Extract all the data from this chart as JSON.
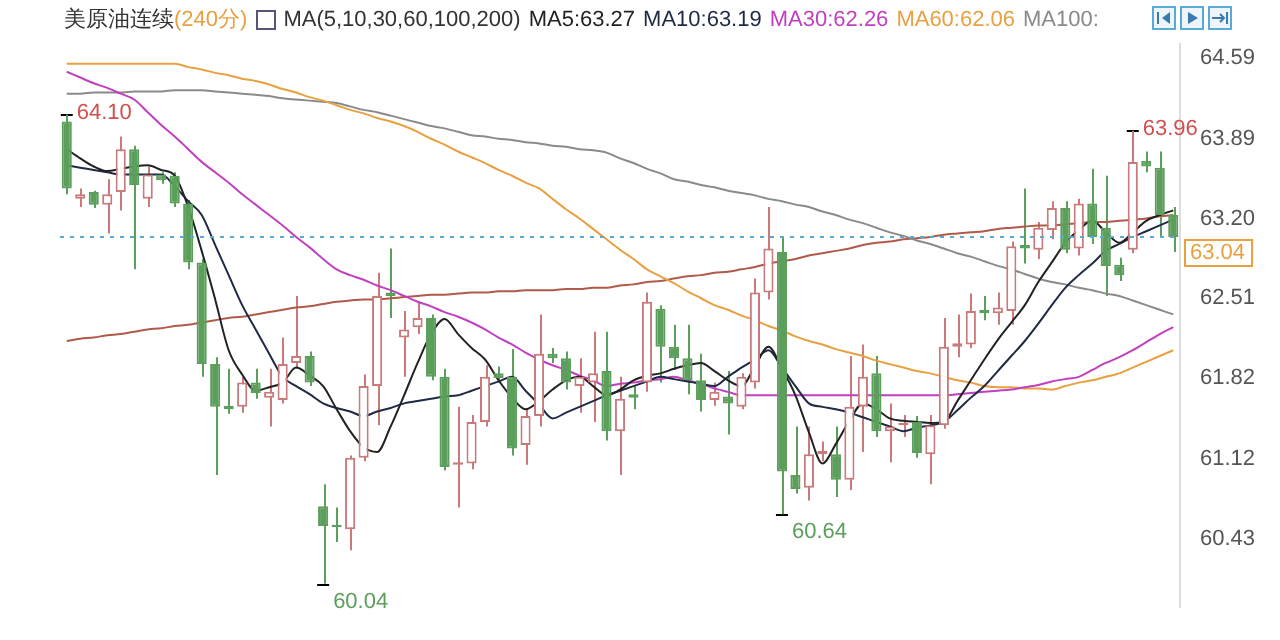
{
  "chart_data": {
    "type": "candlestick",
    "title": "美原油连续",
    "subtitle": "(240分)",
    "legend_title": "MA(5,10,30,60,100,200)",
    "legend": "top",
    "grid": false,
    "categories": [
      null,
      null,
      null,
      null,
      null,
      null,
      null,
      null,
      null,
      null,
      null,
      null,
      null,
      null,
      null,
      null,
      null,
      null,
      null,
      null,
      null,
      null,
      null,
      null,
      null,
      null,
      null,
      null,
      null,
      null,
      null,
      null,
      null,
      null,
      null,
      null,
      null,
      null,
      null,
      null,
      null,
      null,
      null,
      null,
      null,
      null,
      null,
      null,
      null,
      null,
      null,
      null,
      null,
      null,
      null,
      null,
      null,
      null,
      null,
      null,
      null,
      null,
      null,
      null,
      null,
      null,
      null,
      null,
      null,
      null,
      null,
      null,
      null,
      null,
      null,
      null,
      null,
      null,
      null,
      null,
      null,
      null,
      null
    ],
    "ohlc": [
      [
        64.04,
        64.1,
        63.41,
        63.46
      ],
      [
        63.37,
        63.46,
        63.3,
        63.41
      ],
      [
        63.43,
        63.44,
        63.29,
        63.32
      ],
      [
        63.32,
        63.54,
        63.07,
        63.41
      ],
      [
        63.43,
        63.91,
        63.27,
        63.8
      ],
      [
        63.8,
        63.83,
        62.76,
        63.49
      ],
      [
        63.37,
        63.65,
        63.3,
        63.58
      ],
      [
        63.58,
        63.6,
        63.5,
        63.53
      ],
      [
        63.57,
        63.6,
        63.3,
        63.33
      ],
      [
        63.33,
        63.36,
        62.76,
        62.82
      ],
      [
        62.82,
        62.85,
        61.83,
        61.94
      ],
      [
        61.94,
        62.0,
        60.98,
        61.57
      ],
      [
        61.58,
        61.9,
        61.51,
        61.55
      ],
      [
        61.57,
        61.83,
        61.52,
        61.78
      ],
      [
        61.78,
        61.9,
        61.64,
        61.69
      ],
      [
        61.65,
        61.9,
        61.4,
        61.7
      ],
      [
        61.63,
        62.17,
        61.6,
        61.94
      ],
      [
        61.95,
        62.53,
        61.9,
        62.01
      ],
      [
        62.01,
        62.05,
        61.75,
        61.78
      ],
      [
        60.71,
        60.9,
        60.04,
        60.54
      ],
      [
        60.55,
        60.7,
        60.4,
        60.53
      ],
      [
        60.51,
        61.15,
        60.33,
        61.13
      ],
      [
        61.13,
        61.85,
        61.1,
        61.75
      ],
      [
        61.75,
        62.73,
        61.41,
        62.53
      ],
      [
        62.56,
        62.94,
        62.34,
        62.53
      ],
      [
        62.17,
        62.4,
        61.83,
        62.24
      ],
      [
        62.26,
        62.48,
        62.2,
        62.34
      ],
      [
        62.34,
        62.37,
        61.8,
        61.83
      ],
      [
        61.83,
        61.9,
        61.02,
        61.05
      ],
      [
        61.07,
        61.57,
        60.7,
        61.09
      ],
      [
        61.08,
        61.5,
        61.03,
        61.44
      ],
      [
        61.44,
        61.93,
        61.4,
        61.83
      ],
      [
        61.86,
        61.92,
        61.8,
        61.82
      ],
      [
        61.83,
        62.07,
        61.15,
        61.21
      ],
      [
        61.24,
        61.55,
        61.07,
        61.49
      ],
      [
        61.49,
        62.37,
        61.4,
        62.03
      ],
      [
        62.03,
        62.08,
        61.95,
        61.99
      ],
      [
        61.99,
        62.05,
        61.72,
        61.78
      ],
      [
        61.75,
        61.99,
        61.52,
        61.83
      ],
      [
        61.78,
        62.22,
        61.44,
        61.86
      ],
      [
        61.88,
        62.22,
        61.28,
        61.36
      ],
      [
        61.36,
        61.83,
        60.98,
        61.64
      ],
      [
        61.68,
        61.75,
        61.55,
        61.65
      ],
      [
        61.78,
        62.56,
        61.7,
        62.48
      ],
      [
        62.42,
        62.45,
        61.78,
        62.09
      ],
      [
        62.09,
        62.28,
        61.89,
        61.99
      ],
      [
        61.99,
        62.28,
        61.68,
        61.8
      ],
      [
        61.8,
        62.03,
        61.53,
        61.63
      ],
      [
        61.63,
        61.78,
        61.58,
        61.7
      ],
      [
        61.66,
        61.88,
        61.33,
        61.6
      ],
      [
        61.57,
        61.86,
        61.55,
        61.83
      ],
      [
        61.78,
        62.68,
        61.73,
        62.56
      ],
      [
        62.56,
        63.3,
        62.5,
        62.94
      ],
      [
        62.91,
        63.04,
        60.64,
        61.01
      ],
      [
        60.98,
        61.4,
        60.82,
        60.86
      ],
      [
        60.87,
        61.4,
        60.76,
        61.16
      ],
      [
        61.16,
        61.27,
        61.1,
        61.19
      ],
      [
        61.16,
        61.4,
        60.79,
        60.94
      ],
      [
        60.94,
        62.01,
        60.85,
        61.57
      ],
      [
        61.57,
        62.11,
        61.18,
        61.83
      ],
      [
        61.86,
        62.01,
        61.31,
        61.36
      ],
      [
        61.36,
        61.6,
        61.09,
        61.4
      ],
      [
        61.41,
        61.5,
        61.31,
        61.43
      ],
      [
        61.44,
        61.49,
        61.13,
        61.17
      ],
      [
        61.16,
        61.5,
        60.9,
        61.41
      ],
      [
        61.41,
        62.34,
        61.38,
        62.09
      ],
      [
        62.09,
        62.37,
        62.0,
        62.12
      ],
      [
        62.11,
        62.55,
        62.08,
        62.4
      ],
      [
        62.41,
        62.53,
        62.32,
        62.38
      ],
      [
        62.38,
        62.56,
        62.28,
        62.43
      ],
      [
        62.4,
        63.0,
        62.28,
        62.96
      ],
      [
        62.97,
        63.46,
        62.81,
        62.94
      ],
      [
        62.93,
        63.17,
        62.85,
        63.12
      ],
      [
        63.1,
        63.35,
        63.02,
        63.29
      ],
      [
        63.29,
        63.35,
        62.9,
        62.93
      ],
      [
        62.94,
        63.37,
        62.88,
        63.33
      ],
      [
        63.33,
        63.63,
        62.98,
        63.04
      ],
      [
        63.12,
        63.57,
        62.53,
        62.79
      ],
      [
        62.8,
        62.86,
        62.66,
        62.71
      ],
      [
        62.93,
        63.96,
        62.9,
        63.69
      ],
      [
        63.7,
        63.78,
        63.6,
        63.65
      ],
      [
        63.64,
        63.78,
        63.04,
        63.23
      ],
      [
        63.23,
        63.3,
        62.91,
        63.04
      ]
    ],
    "value_labels": [
      "64.10",
      null,
      null,
      null,
      null,
      null,
      null,
      null,
      null,
      null,
      null,
      null,
      null,
      null,
      null,
      null,
      null,
      null,
      null,
      "60.04",
      null,
      null,
      null,
      null,
      null,
      null,
      null,
      null,
      null,
      null,
      null,
      null,
      null,
      null,
      null,
      null,
      null,
      null,
      null,
      null,
      null,
      null,
      null,
      null,
      null,
      null,
      null,
      null,
      null,
      null,
      null,
      null,
      null,
      "60.64",
      null,
      null,
      null,
      null,
      null,
      null,
      null,
      null,
      null,
      null,
      null,
      null,
      null,
      null,
      null,
      null,
      null,
      null,
      null,
      null,
      null,
      null,
      null,
      null,
      null,
      "63.96",
      null,
      null,
      null
    ],
    "colors": [
      "#5c9e5c",
      "#c97a7a",
      "#5c9e5c",
      "#c97a7a",
      "#c97a7a",
      "#5c9e5c",
      "#c97a7a",
      "#5c9e5c",
      "#5c9e5c",
      "#5c9e5c",
      "#5c9e5c",
      "#5c9e5c",
      "#5c9e5c",
      "#c97a7a",
      "#5c9e5c",
      "#c97a7a",
      "#c97a7a",
      "#c97a7a",
      "#5c9e5c",
      "#5c9e5c",
      "#5c9e5c",
      "#c97a7a",
      "#c97a7a",
      "#c97a7a",
      "#5c9e5c",
      "#c97a7a",
      "#c97a7a",
      "#5c9e5c",
      "#5c9e5c",
      "#c97a7a",
      "#c97a7a",
      "#c97a7a",
      "#5c9e5c",
      "#5c9e5c",
      "#c97a7a",
      "#c97a7a",
      "#5c9e5c",
      "#5c9e5c",
      "#c97a7a",
      "#c97a7a",
      "#5c9e5c",
      "#c97a7a",
      "#5c9e5c",
      "#c97a7a",
      "#5c9e5c",
      "#5c9e5c",
      "#5c9e5c",
      "#5c9e5c",
      "#c97a7a",
      "#5c9e5c",
      "#c97a7a",
      "#c97a7a",
      "#c97a7a",
      "#5c9e5c",
      "#5c9e5c",
      "#c97a7a",
      "#c97a7a",
      "#5c9e5c",
      "#c97a7a",
      "#c97a7a",
      "#5c9e5c",
      "#c97a7a",
      "#c97a7a",
      "#5c9e5c",
      "#c97a7a",
      "#c97a7a",
      "#c97a7a",
      "#c97a7a",
      "#5c9e5c",
      "#c97a7a",
      "#c97a7a",
      "#5c9e5c",
      "#c97a7a",
      "#c97a7a",
      "#5c9e5c",
      "#c97a7a",
      "#5c9e5c",
      "#5c9e5c",
      "#5c9e5c",
      "#c97a7a",
      "#5c9e5c",
      "#5c9e5c",
      "#5c9e5c"
    ],
    "series": [
      {
        "type": "line",
        "name": "MA5:63.27",
        "color": "#222222",
        "values": [
          63.8,
          63.72,
          63.65,
          63.61,
          63.63,
          63.65,
          63.66,
          63.62,
          63.57,
          63.3,
          62.92,
          62.5,
          62.06,
          61.85,
          61.71,
          61.74,
          61.78,
          61.91,
          61.84,
          61.75,
          61.55,
          61.36,
          61.22,
          61.18,
          61.4,
          61.67,
          61.95,
          62.2,
          62.33,
          62.2,
          62.08,
          61.98,
          61.8,
          61.65,
          61.55,
          61.62,
          61.72,
          61.8,
          61.83,
          61.75,
          61.67,
          61.72,
          61.8,
          61.84,
          61.86,
          61.9,
          61.93,
          61.95,
          61.88,
          61.8,
          61.75,
          61.92,
          62.09,
          61.9,
          61.67,
          61.35,
          61.08,
          61.25,
          61.45,
          61.6,
          61.55,
          61.47,
          61.45,
          61.44,
          61.43,
          61.44,
          61.62,
          61.8,
          61.98,
          62.15,
          62.3,
          62.45,
          62.65,
          62.82,
          62.99,
          63.1,
          63.18,
          63.08,
          62.99,
          63.08,
          63.18,
          63.23,
          63.27
        ]
      },
      {
        "type": "line",
        "name": "MA10:63.19",
        "color": "#1f2a44",
        "values": [
          63.66,
          63.64,
          63.62,
          63.6,
          63.58,
          63.58,
          63.58,
          63.58,
          63.48,
          63.35,
          63.23,
          62.97,
          62.71,
          62.45,
          62.24,
          62.03,
          61.83,
          61.75,
          61.68,
          61.6,
          61.56,
          61.53,
          61.49,
          61.53,
          61.56,
          61.6,
          61.62,
          61.64,
          61.66,
          61.67,
          61.71,
          61.75,
          61.79,
          61.83,
          61.71,
          61.59,
          61.47,
          61.52,
          61.57,
          61.62,
          61.67,
          61.71,
          61.75,
          61.79,
          61.83,
          61.81,
          61.79,
          61.77,
          61.75,
          61.83,
          61.91,
          61.98,
          62.06,
          61.91,
          61.75,
          61.6,
          61.57,
          61.55,
          61.52,
          61.48,
          61.44,
          61.4,
          61.36,
          61.39,
          61.41,
          61.44,
          61.54,
          61.65,
          61.75,
          61.88,
          62.01,
          62.14,
          62.29,
          62.45,
          62.6,
          62.71,
          62.81,
          62.92,
          62.98,
          63.04,
          63.09,
          63.14,
          63.19
        ]
      },
      {
        "type": "line",
        "name": "MA30:62.26",
        "color": "#c040c0",
        "values": [
          64.47,
          64.42,
          64.37,
          64.33,
          64.28,
          64.23,
          64.12,
          64.01,
          63.91,
          63.8,
          63.69,
          63.6,
          63.51,
          63.41,
          63.32,
          63.23,
          63.14,
          63.04,
          62.95,
          62.85,
          62.76,
          62.71,
          62.67,
          62.62,
          62.58,
          62.53,
          62.48,
          62.44,
          62.39,
          62.35,
          62.3,
          62.24,
          62.17,
          62.11,
          62.04,
          61.98,
          61.93,
          61.89,
          61.84,
          61.8,
          61.75,
          61.77,
          61.78,
          61.8,
          61.81,
          61.83,
          61.8,
          61.77,
          61.73,
          61.7,
          61.67,
          61.67,
          61.67,
          61.67,
          61.67,
          61.67,
          61.67,
          61.67,
          61.67,
          61.67,
          61.67,
          61.67,
          61.67,
          61.67,
          61.67,
          61.67,
          61.68,
          61.69,
          61.7,
          61.71,
          61.72,
          61.74,
          61.76,
          61.79,
          61.81,
          61.83,
          61.89,
          61.95,
          62.0,
          62.06,
          62.13,
          62.2,
          62.26
        ]
      },
      {
        "type": "line",
        "name": "MA60:62.06",
        "color": "#e8a040",
        "values": [
          64.54,
          64.54,
          64.54,
          64.54,
          64.54,
          64.54,
          64.54,
          64.54,
          64.54,
          64.51,
          64.49,
          64.46,
          64.44,
          64.41,
          64.39,
          64.36,
          64.32,
          64.29,
          64.25,
          64.22,
          64.18,
          64.14,
          64.11,
          64.07,
          64.04,
          64.0,
          63.95,
          63.89,
          63.84,
          63.78,
          63.73,
          63.68,
          63.62,
          63.57,
          63.51,
          63.46,
          63.37,
          63.28,
          63.2,
          63.11,
          63.02,
          62.93,
          62.85,
          62.76,
          62.7,
          62.64,
          62.57,
          62.51,
          62.45,
          62.41,
          62.36,
          62.32,
          62.27,
          62.23,
          62.18,
          62.14,
          62.11,
          62.07,
          62.04,
          62.01,
          61.97,
          61.94,
          61.91,
          61.88,
          61.86,
          61.83,
          61.8,
          61.78,
          61.75,
          61.74,
          61.74,
          61.73,
          61.73,
          61.72,
          61.75,
          61.78,
          61.8,
          61.83,
          61.86,
          61.91,
          61.96,
          62.01,
          62.06
        ]
      },
      {
        "type": "line",
        "name": "MA100:",
        "color": "#8a8a8a",
        "values": [
          64.28,
          64.28,
          64.29,
          64.29,
          64.29,
          64.3,
          64.3,
          64.3,
          64.31,
          64.31,
          64.31,
          64.3,
          64.29,
          64.28,
          64.27,
          64.26,
          64.24,
          64.23,
          64.22,
          64.21,
          64.2,
          64.17,
          64.14,
          64.12,
          64.09,
          64.06,
          64.03,
          64.0,
          63.98,
          63.95,
          63.92,
          63.91,
          63.89,
          63.88,
          63.86,
          63.85,
          63.83,
          63.82,
          63.8,
          63.79,
          63.77,
          63.72,
          63.68,
          63.63,
          63.59,
          63.54,
          63.52,
          63.49,
          63.47,
          63.44,
          63.42,
          63.4,
          63.37,
          63.35,
          63.32,
          63.3,
          63.26,
          63.23,
          63.19,
          63.16,
          63.12,
          63.08,
          63.05,
          63.01,
          62.98,
          62.94,
          62.9,
          62.87,
          62.83,
          62.79,
          62.76,
          62.72,
          62.68,
          62.65,
          62.63,
          62.6,
          62.58,
          62.55,
          62.53,
          62.49,
          62.45,
          62.41,
          62.37
        ]
      },
      {
        "type": "line",
        "color": "#b05a4a",
        "values": [
          62.14,
          62.16,
          62.17,
          62.19,
          62.2,
          62.22,
          62.24,
          62.25,
          62.27,
          62.28,
          62.3,
          62.32,
          62.34,
          62.35,
          62.37,
          62.39,
          62.41,
          62.43,
          62.44,
          62.46,
          62.48,
          62.49,
          62.5,
          62.5,
          62.51,
          62.52,
          62.53,
          62.54,
          62.54,
          62.55,
          62.56,
          62.56,
          62.57,
          62.57,
          62.58,
          62.58,
          62.58,
          62.59,
          62.59,
          62.6,
          62.6,
          62.62,
          62.63,
          62.65,
          62.66,
          62.68,
          62.7,
          62.71,
          62.73,
          62.74,
          62.76,
          62.78,
          62.81,
          62.83,
          62.85,
          62.88,
          62.9,
          62.92,
          62.94,
          62.97,
          62.99,
          63.0,
          63.02,
          63.03,
          63.04,
          63.06,
          63.07,
          63.08,
          63.09,
          63.11,
          63.12,
          63.13,
          63.14,
          63.14,
          63.15,
          63.16,
          63.17,
          63.17,
          63.18,
          63.19,
          63.2,
          63.22,
          63.23
        ]
      }
    ],
    "ylim": [
      59.84,
      64.71
    ],
    "yticks": [
      60.43,
      61.12,
      61.82,
      62.51,
      {
        "value": 63.2,
        "label": "63.20"
      },
      63.89,
      64.59
    ],
    "ref_lines": [
      {
        "axis": "y",
        "value": 63.04,
        "label": "63.04",
        "color": "#5aaad8",
        "line_style": "dotted"
      }
    ]
  }
}
